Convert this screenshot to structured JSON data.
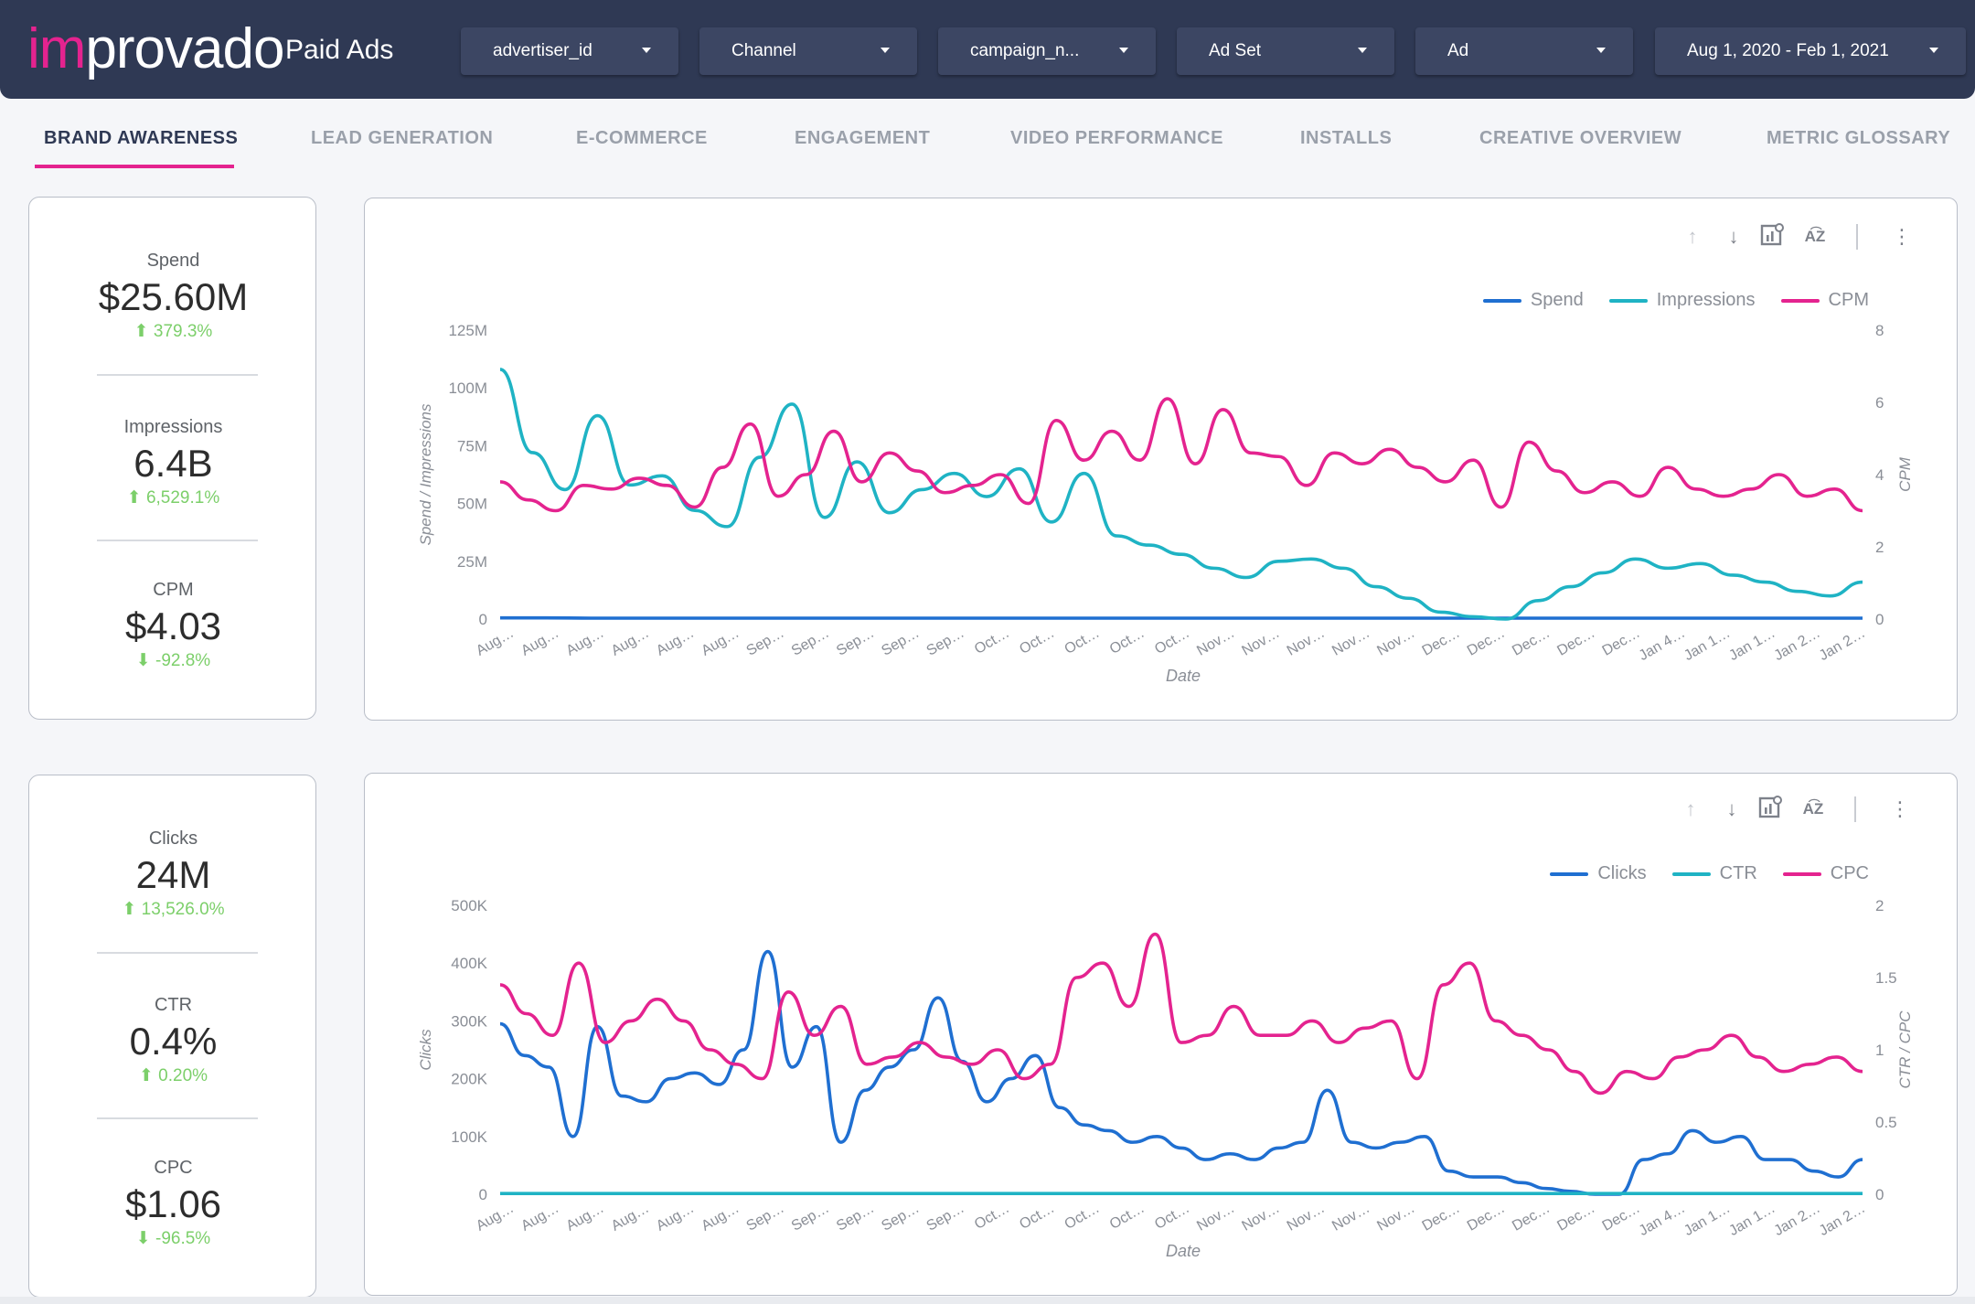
{
  "header": {
    "logo_im": "im",
    "logo_rest": "provado",
    "title": "Paid Ads",
    "filters": [
      {
        "label": "advertiser_id"
      },
      {
        "label": "Channel"
      },
      {
        "label": "campaign_n..."
      },
      {
        "label": "Ad Set"
      },
      {
        "label": "Ad"
      },
      {
        "label": "Aug 1, 2020 - Feb 1, 2021"
      }
    ]
  },
  "tabs": [
    {
      "label": "BRAND AWARENESS",
      "active": true
    },
    {
      "label": "LEAD GENERATION"
    },
    {
      "label": "E-COMMERCE"
    },
    {
      "label": "ENGAGEMENT"
    },
    {
      "label": "VIDEO PERFORMANCE"
    },
    {
      "label": "INSTALLS"
    },
    {
      "label": "CREATIVE OVERVIEW"
    },
    {
      "label": "METRIC GLOSSARY"
    }
  ],
  "kpis_top": [
    {
      "label": "Spend",
      "value": "$25.60M",
      "delta": "379.3%",
      "direction": "up"
    },
    {
      "label": "Impressions",
      "value": "6.4B",
      "delta": "6,529.1%",
      "direction": "up"
    },
    {
      "label": "CPM",
      "value": "$4.03",
      "delta": "-92.8%",
      "direction": "down"
    }
  ],
  "kpis_bottom": [
    {
      "label": "Clicks",
      "value": "24M",
      "delta": "13,526.0%",
      "direction": "up"
    },
    {
      "label": "CTR",
      "value": "0.4%",
      "delta": "0.20%",
      "direction": "up"
    },
    {
      "label": "CPC",
      "value": "$1.06",
      "delta": "-96.5%",
      "direction": "down"
    }
  ],
  "colors": {
    "topbar": "#2f3954",
    "accent": "#e4238f",
    "blue": "#1f6fd1",
    "teal": "#1fb3c4",
    "magenta": "#e4238f",
    "positive": "#7ccf6a"
  },
  "toolbar_icons": [
    "arrow-up-icon",
    "arrow-down-icon",
    "chart-settings-icon",
    "sort-az-icon",
    "more-vert-icon"
  ],
  "x_tick_labels": [
    "Aug…",
    "Aug…",
    "Aug…",
    "Aug…",
    "Aug…",
    "Aug…",
    "Sep…",
    "Sep…",
    "Sep…",
    "Sep…",
    "Sep…",
    "Oct…",
    "Oct…",
    "Oct…",
    "Oct…",
    "Oct…",
    "Nov…",
    "Nov…",
    "Nov…",
    "Nov…",
    "Nov…",
    "Dec…",
    "Dec…",
    "Dec…",
    "Dec…",
    "Dec…",
    "Jan 4…",
    "Jan 1…",
    "Jan 1…",
    "Jan 2…",
    "Jan 2…"
  ],
  "chart_data": [
    {
      "type": "line",
      "xlabel": "Date",
      "ylabel_left": "Spend / Impressions",
      "ylabel_right": "CPM",
      "ylim_left": [
        0,
        125000000
      ],
      "ylim_right": [
        0,
        8
      ],
      "yticks_left": [
        "0",
        "25M",
        "50M",
        "75M",
        "100M",
        "125M"
      ],
      "yticks_right": [
        "0",
        "2",
        "4",
        "6",
        "8"
      ],
      "legend_position": "top-right",
      "series": [
        {
          "name": "Spend",
          "axis": "left",
          "color": "#1f6fd1",
          "values": [
            0.5,
            0.5,
            0.4,
            0.4,
            0.4,
            0.4,
            0.4,
            0.4,
            0.4,
            0.4,
            0.4,
            0.4,
            0.4,
            0.4,
            0.4,
            0.4,
            0.4,
            0.4,
            0.4,
            0.4,
            0.4,
            0.4,
            0.4,
            0.4,
            0.4,
            0.4,
            0.4,
            0.4,
            0.4,
            0.4,
            0.4
          ]
        },
        {
          "name": "Impressions",
          "axis": "left",
          "color": "#1fb3c4",
          "values": [
            108,
            72,
            56,
            88,
            58,
            62,
            47,
            40,
            70,
            93,
            44,
            68,
            46,
            56,
            63,
            53,
            65,
            42,
            63,
            36,
            32,
            28,
            22,
            18,
            25,
            26,
            22,
            14,
            9,
            3,
            1,
            0,
            8,
            14,
            20,
            26,
            22,
            24,
            19,
            16,
            12,
            10,
            16
          ]
        },
        {
          "name": "CPM",
          "axis": "right",
          "color": "#e4238f",
          "values": [
            3.8,
            3.3,
            3.0,
            3.7,
            3.6,
            3.9,
            3.7,
            3.1,
            4.2,
            5.4,
            3.4,
            4.0,
            5.2,
            3.8,
            4.6,
            4.1,
            3.5,
            3.7,
            4.0,
            3.2,
            5.5,
            4.4,
            5.2,
            4.4,
            6.1,
            4.3,
            5.8,
            4.6,
            4.5,
            3.7,
            4.6,
            4.3,
            4.7,
            4.2,
            3.8,
            4.4,
            3.1,
            4.9,
            4.1,
            3.5,
            3.8,
            3.4,
            4.2,
            3.6,
            3.4,
            3.6,
            4.0,
            3.4,
            3.6,
            3.0
          ]
        }
      ]
    },
    {
      "type": "line",
      "xlabel": "Date",
      "ylabel_left": "Clicks",
      "ylabel_right": "CTR / CPC",
      "ylim_left": [
        0,
        500000
      ],
      "ylim_right": [
        0,
        2
      ],
      "yticks_left": [
        "0",
        "100K",
        "200K",
        "300K",
        "400K",
        "500K"
      ],
      "yticks_right": [
        "0",
        "0.5",
        "1",
        "1.5",
        "2"
      ],
      "legend_position": "top-right",
      "series": [
        {
          "name": "Clicks",
          "axis": "left",
          "color": "#1f6fd1",
          "values": [
            295,
            240,
            220,
            100,
            290,
            170,
            160,
            200,
            210,
            190,
            250,
            420,
            220,
            290,
            90,
            180,
            220,
            250,
            340,
            230,
            160,
            200,
            240,
            150,
            120,
            110,
            90,
            100,
            80,
            60,
            70,
            60,
            80,
            90,
            180,
            90,
            80,
            90,
            100,
            40,
            30,
            30,
            20,
            10,
            5,
            0,
            0,
            60,
            70,
            110,
            90,
            100,
            60,
            60,
            40,
            30,
            60
          ]
        },
        {
          "name": "CTR",
          "axis": "right",
          "color": "#1fb3c4",
          "values": [
            0.005,
            0.005,
            0.005,
            0.005,
            0.005,
            0.005,
            0.005,
            0.005,
            0.005,
            0.005,
            0.005,
            0.005,
            0.005,
            0.005,
            0.005,
            0.005,
            0.005,
            0.005,
            0.005,
            0.005,
            0.005,
            0.005,
            0.005,
            0.005,
            0.005,
            0.005,
            0.005,
            0.005,
            0.005,
            0.005,
            0.005
          ]
        },
        {
          "name": "CPC",
          "axis": "right",
          "color": "#e4238f",
          "values": [
            1.45,
            1.25,
            1.1,
            1.6,
            1.05,
            1.2,
            1.35,
            1.2,
            1.0,
            0.9,
            0.8,
            1.4,
            1.1,
            1.3,
            0.9,
            0.95,
            1.05,
            0.95,
            0.9,
            1.0,
            0.8,
            0.9,
            1.5,
            1.6,
            1.3,
            1.8,
            1.05,
            1.1,
            1.3,
            1.1,
            1.1,
            1.2,
            1.05,
            1.15,
            1.2,
            0.8,
            1.45,
            1.6,
            1.2,
            1.1,
            1.0,
            0.85,
            0.7,
            0.85,
            0.8,
            0.95,
            1.0,
            1.1,
            0.95,
            0.85,
            0.9,
            0.95,
            0.85
          ]
        }
      ]
    }
  ]
}
